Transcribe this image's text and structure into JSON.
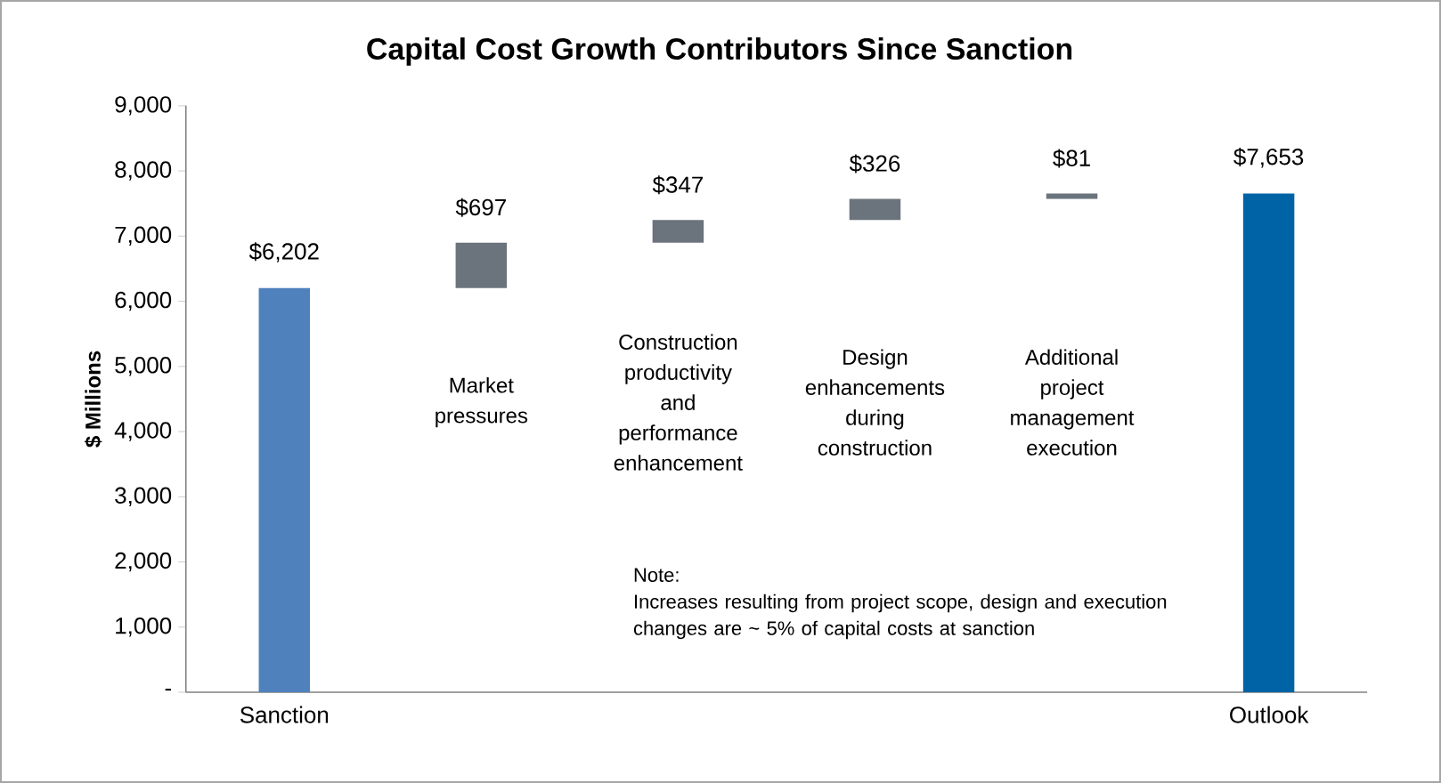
{
  "chart_data": {
    "type": "bar",
    "title": "Capital Cost Growth Contributors Since Sanction",
    "ylabel": "$ Millions",
    "categories": [
      "Sanction",
      "Market pressures",
      "Construction productivity and performance enhancement",
      "Design enhancements during construction",
      "Additional project management execution",
      "Outlook"
    ],
    "values": [
      6202,
      697,
      347,
      326,
      81,
      7653
    ],
    "base": [
      0,
      6202,
      6899,
      7246,
      7572,
      0
    ],
    "colors": [
      "#4f81bd",
      "#6b737c",
      "#6b737c",
      "#6b737c",
      "#6b737c",
      "#0063a6"
    ],
    "value_labels": [
      "$6,202",
      "$697",
      "$347",
      "$326",
      "$81",
      "$7,653"
    ],
    "ylim": [
      0,
      9000
    ],
    "yticks": [
      {
        "value": 0,
        "label": "-"
      },
      {
        "value": 1000,
        "label": "1,000"
      },
      {
        "value": 2000,
        "label": "2,000"
      },
      {
        "value": 3000,
        "label": "3,000"
      },
      {
        "value": 4000,
        "label": "4,000"
      },
      {
        "value": 5000,
        "label": "5,000"
      },
      {
        "value": 6000,
        "label": "6,000"
      },
      {
        "value": 7000,
        "label": "7,000"
      },
      {
        "value": 8000,
        "label": "8,000"
      },
      {
        "value": 9000,
        "label": "9,000"
      }
    ],
    "annotations": [
      "Note:",
      "Increases resulting from project scope, design and execution changes are ~ 5% of capital costs at sanction"
    ]
  }
}
